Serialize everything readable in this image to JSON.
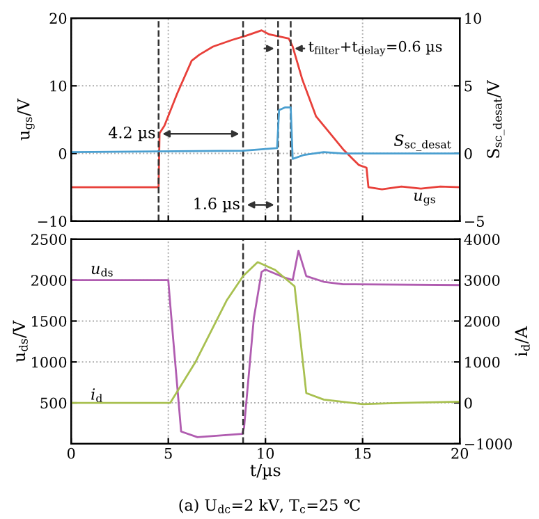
{
  "chart_data": [
    {
      "type": "line",
      "ylabel": "u$_{gs}$/V",
      "y2label": "S$_{sc_desat}$/V",
      "series": [
        {
          "name": "u$_{gs}$",
          "color": "#e8403a",
          "x": [
            0,
            4.4,
            4.5,
            4.55,
            4.8,
            5.45,
            6.2,
            6.6,
            7.3,
            8.3,
            9.0,
            9.8,
            10.2,
            11.2,
            11.4,
            11.9,
            12.6,
            13.0,
            14.0,
            14.8,
            15.2,
            15.3,
            16,
            17,
            18,
            19,
            20
          ],
          "values": [
            -5,
            -5,
            -5,
            3,
            4.1,
            8.8,
            13.7,
            14.6,
            15.8,
            16.8,
            17.4,
            18.2,
            17.6,
            17.0,
            15.8,
            10.9,
            5.5,
            4.1,
            0.6,
            -1.7,
            -2.1,
            -5,
            -5.3,
            -4.9,
            -5.2,
            -4.9,
            -5
          ]
        },
        {
          "name": "S$_{sc_desat}$",
          "color": "#4a9fd0",
          "axis": "y2",
          "x": [
            0,
            8.85,
            10.6,
            10.7,
            11.0,
            11.3,
            11.4,
            12,
            13,
            14,
            20
          ],
          "values": [
            0.1,
            0.2,
            0.4,
            3.2,
            3.4,
            3.4,
            -0.4,
            -0.1,
            0.1,
            0.0,
            0.0
          ]
        }
      ],
      "xlim": [
        0,
        20
      ],
      "xticks": [
        0,
        5,
        10,
        15,
        20
      ],
      "ylim": [
        -10,
        20
      ],
      "yticks": [
        {
          "value": -10,
          "label": "−10"
        },
        0,
        10,
        20
      ],
      "y2lim": [
        -5,
        10
      ],
      "y2ticks": [
        {
          "value": -5,
          "label": "−5"
        },
        0,
        5,
        10
      ],
      "tick_labels": "y",
      "grid": true,
      "line_style": "solid",
      "ref_lines": [
        {
          "axis": "x",
          "value": 4.5,
          "color": "#333333",
          "line_style": "dashed"
        },
        {
          "axis": "x",
          "value": 8.85,
          "color": "#333333",
          "line_style": "dashed"
        },
        {
          "axis": "x",
          "value": 10.65,
          "color": "#333333",
          "line_style": "dashed"
        },
        {
          "axis": "x",
          "value": 11.3,
          "color": "#333333",
          "line_style": "dashed"
        }
      ],
      "annotations": [
        "4.2 µs",
        "1.6 µs",
        "t$_{filter}$+t$_{delay}$=0.6 µs"
      ]
    },
    {
      "type": "line",
      "xlabel": "t/µs",
      "ylabel": "u$_{ds}$/V",
      "y2label": "i$_{d}$/A",
      "series": [
        {
          "name": "u$_{ds}$",
          "color": "#b05cb0",
          "x": [
            0,
            5.0,
            5.1,
            5.66,
            6.5,
            8.8,
            8.9,
            9.4,
            9.8,
            10.0,
            11.0,
            11.4,
            11.7,
            12.1,
            13,
            14,
            20
          ],
          "values": [
            2000,
            2000,
            1700,
            150,
            80,
            120,
            200,
            1530,
            2100,
            2130,
            2030,
            2000,
            2360,
            2050,
            1980,
            1950,
            1940
          ]
        },
        {
          "name": "i$_{d}$",
          "color": "#a8c050",
          "axis": "y2",
          "x": [
            0,
            5.1,
            6.4,
            8.0,
            8.85,
            9.6,
            10.5,
            11.5,
            12.1,
            13,
            15,
            17,
            20
          ],
          "values": [
            0,
            0,
            1000,
            2500,
            3100,
            3440,
            3250,
            2850,
            240,
            80,
            -30,
            0,
            30
          ]
        }
      ],
      "xlim": [
        0,
        20
      ],
      "xticks": [
        0,
        5,
        10,
        15,
        20
      ],
      "ylim": [
        0,
        2500
      ],
      "yticks": [
        500,
        1000,
        1500,
        2000,
        2500
      ],
      "y2lim": [
        -1000,
        4000
      ],
      "y2ticks": [
        {
          "value": -1000,
          "label": "−1000"
        },
        0,
        1000,
        2000,
        3000,
        4000
      ],
      "grid": true,
      "line_style": "solid",
      "ref_lines": [
        {
          "axis": "x",
          "value": 8.85,
          "color": "#333333",
          "line_style": "dashed"
        }
      ],
      "annotations": [
        "(a) U$_{dc}$=2 kV, T$_{c}$=25 ℃"
      ]
    }
  ]
}
